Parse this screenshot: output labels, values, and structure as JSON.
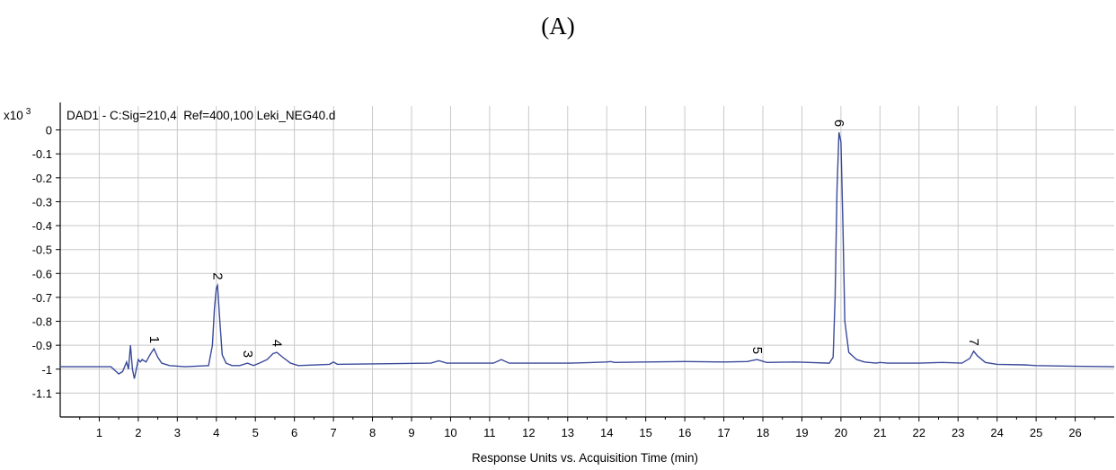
{
  "panel_label": "(A)",
  "colors": {
    "trace": "#3a4a9a",
    "grid": "#c8c8c8",
    "axis": "#000000"
  },
  "chart_data": {
    "type": "line",
    "title": "DAD1 - C:Sig=210,4  Ref=400,100 Leki_NEG40.d",
    "y_scale_label": "x10",
    "y_scale_exp": "3",
    "xlabel": "Response Units vs. Acquisition Time (min)",
    "ylabel": "",
    "xlim": [
      0,
      27
    ],
    "ylim": [
      -1.2,
      0.1
    ],
    "grid": true,
    "x_ticks": [
      1,
      2,
      3,
      4,
      5,
      6,
      7,
      8,
      9,
      10,
      11,
      12,
      13,
      14,
      15,
      16,
      17,
      18,
      19,
      20,
      21,
      22,
      23,
      24,
      25,
      26
    ],
    "y_ticks": [
      0,
      -0.1,
      -0.2,
      -0.3,
      -0.4,
      -0.5,
      -0.6,
      -0.7,
      -0.8,
      -0.9,
      -1,
      -1.1
    ],
    "y_tick_labels": [
      "0",
      "-0.1",
      "-0.2",
      "-0.3",
      "-0.4",
      "-0.5",
      "-0.6",
      "-0.7",
      "-0.8",
      "-0.9",
      "-1",
      "-1.1"
    ],
    "peaks": [
      {
        "label": "1",
        "x": 2.4,
        "y": -0.915
      },
      {
        "label": "2",
        "x": 4.03,
        "y": -0.65
      },
      {
        "label": "3",
        "x": 4.8,
        "y": -0.975
      },
      {
        "label": "4",
        "x": 5.55,
        "y": -0.93
      },
      {
        "label": "5",
        "x": 17.85,
        "y": -0.96
      },
      {
        "label": "6",
        "x": 19.95,
        "y": -0.01
      },
      {
        "label": "7",
        "x": 23.4,
        "y": -0.925
      }
    ],
    "series": [
      {
        "x": [
          0,
          1.3,
          1.5,
          1.6,
          1.7,
          1.75,
          1.8,
          1.85,
          1.9,
          1.95,
          2.0,
          2.05,
          2.1,
          2.2,
          2.3,
          2.4,
          2.5,
          2.6,
          2.8,
          3.2,
          3.8,
          3.9,
          3.95,
          4.0,
          4.03,
          4.08,
          4.15,
          4.25,
          4.4,
          4.6,
          4.8,
          4.95,
          5.1,
          5.3,
          5.45,
          5.55,
          5.7,
          5.9,
          6.1,
          6.9,
          7.0,
          7.1,
          8.0,
          9.5,
          9.7,
          9.9,
          11.1,
          11.3,
          11.5,
          13.0,
          13.5,
          14.0,
          14.1,
          14.2,
          15.0,
          16.0,
          17.0,
          17.6,
          17.85,
          18.1,
          18.8,
          19.7,
          19.8,
          19.85,
          19.9,
          19.95,
          20.0,
          20.05,
          20.1,
          20.2,
          20.4,
          20.6,
          20.9,
          21.0,
          21.2,
          22.0,
          22.6,
          23.1,
          23.3,
          23.4,
          23.5,
          23.7,
          24.0,
          24.7,
          25.0,
          26.0,
          27.0
        ],
        "y": [
          -0.99,
          -0.99,
          -1.02,
          -1.01,
          -0.97,
          -1.0,
          -0.9,
          -1.0,
          -1.04,
          -1.0,
          -0.96,
          -0.97,
          -0.96,
          -0.97,
          -0.94,
          -0.915,
          -0.95,
          -0.975,
          -0.985,
          -0.99,
          -0.985,
          -0.9,
          -0.75,
          -0.66,
          -0.65,
          -0.78,
          -0.94,
          -0.975,
          -0.985,
          -0.985,
          -0.975,
          -0.985,
          -0.975,
          -0.96,
          -0.935,
          -0.93,
          -0.95,
          -0.975,
          -0.985,
          -0.98,
          -0.97,
          -0.98,
          -0.978,
          -0.975,
          -0.965,
          -0.975,
          -0.975,
          -0.96,
          -0.975,
          -0.975,
          -0.973,
          -0.97,
          -0.968,
          -0.972,
          -0.97,
          -0.968,
          -0.97,
          -0.968,
          -0.96,
          -0.972,
          -0.97,
          -0.975,
          -0.95,
          -0.7,
          -0.25,
          -0.01,
          -0.05,
          -0.4,
          -0.8,
          -0.93,
          -0.96,
          -0.97,
          -0.975,
          -0.972,
          -0.975,
          -0.975,
          -0.972,
          -0.975,
          -0.955,
          -0.925,
          -0.945,
          -0.972,
          -0.98,
          -0.982,
          -0.985,
          -0.988,
          -0.99
        ]
      }
    ]
  }
}
